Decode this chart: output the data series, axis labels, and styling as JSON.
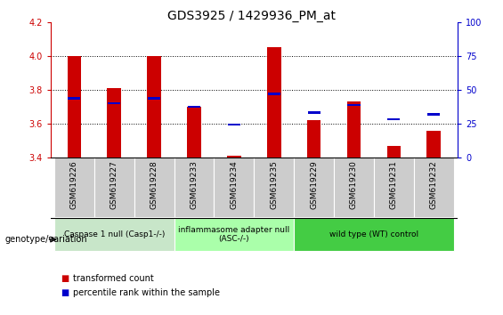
{
  "title": "GDS3925 / 1429936_PM_at",
  "samples": [
    "GSM619226",
    "GSM619227",
    "GSM619228",
    "GSM619233",
    "GSM619234",
    "GSM619235",
    "GSM619229",
    "GSM619230",
    "GSM619231",
    "GSM619232"
  ],
  "red_values": [
    4.0,
    3.81,
    4.0,
    3.7,
    3.41,
    4.05,
    3.62,
    3.73,
    3.47,
    3.56
  ],
  "blue_values": [
    3.75,
    3.72,
    3.75,
    3.7,
    3.595,
    3.775,
    3.665,
    3.71,
    3.625,
    3.655
  ],
  "ylim_left": [
    3.4,
    4.2
  ],
  "ylim_right": [
    0,
    100
  ],
  "yticks_left": [
    3.4,
    3.6,
    3.8,
    4.0,
    4.2
  ],
  "yticks_right": [
    0,
    25,
    50,
    75,
    100
  ],
  "base_value": 3.4,
  "groups": [
    {
      "label": "Caspase 1 null (Casp1-/-)",
      "start": 0,
      "end": 2,
      "color": "#c8e6c9"
    },
    {
      "label": "inflammasome adapter null\n(ASC-/-)",
      "start": 3,
      "end": 5,
      "color": "#aaffaa"
    },
    {
      "label": "wild type (WT) control",
      "start": 6,
      "end": 9,
      "color": "#44cc44"
    }
  ],
  "bar_width": 0.35,
  "red_color": "#cc0000",
  "blue_color": "#0000cc",
  "plot_bg": "#ffffff",
  "xtick_bg": "#cccccc",
  "legend_red": "transformed count",
  "legend_blue": "percentile rank within the sample",
  "title_fontsize": 10,
  "tick_fontsize": 7,
  "label_fontsize": 7
}
